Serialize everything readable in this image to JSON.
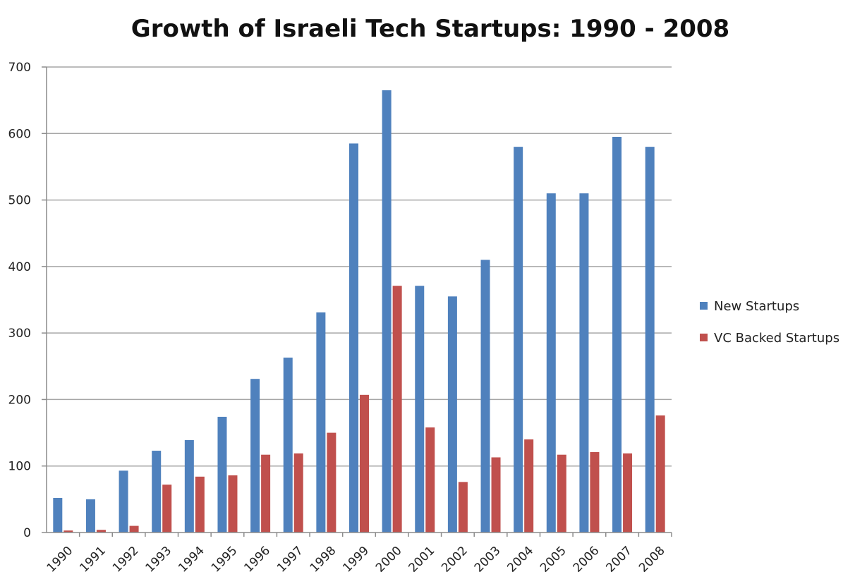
{
  "chart_data": {
    "type": "bar",
    "title": "Growth of Israeli Tech Startups: 1990 - 2008",
    "xlabel": "",
    "ylabel": "",
    "categories": [
      "1990",
      "1991",
      "1992",
      "1993",
      "1994",
      "1995",
      "1996",
      "1997",
      "1998",
      "1999",
      "2000",
      "2001",
      "2002",
      "2003",
      "2004",
      "2005",
      "2006",
      "2007",
      "2008"
    ],
    "series": [
      {
        "name": "New Startups",
        "color": "#4f81bd",
        "values": [
          52,
          50,
          93,
          123,
          139,
          174,
          231,
          263,
          331,
          585,
          665,
          371,
          355,
          410,
          580,
          510,
          510,
          595,
          580
        ]
      },
      {
        "name": "VC Backed Startups",
        "color": "#c0504d",
        "values": [
          3,
          4,
          10,
          72,
          84,
          86,
          117,
          119,
          150,
          207,
          371,
          158,
          76,
          113,
          140,
          117,
          121,
          119,
          176
        ]
      }
    ],
    "ylim": [
      0,
      700
    ],
    "yticks": [
      "0",
      "100",
      "200",
      "300",
      "400",
      "500",
      "600",
      "700"
    ],
    "grid": true,
    "legend_position": "right"
  }
}
